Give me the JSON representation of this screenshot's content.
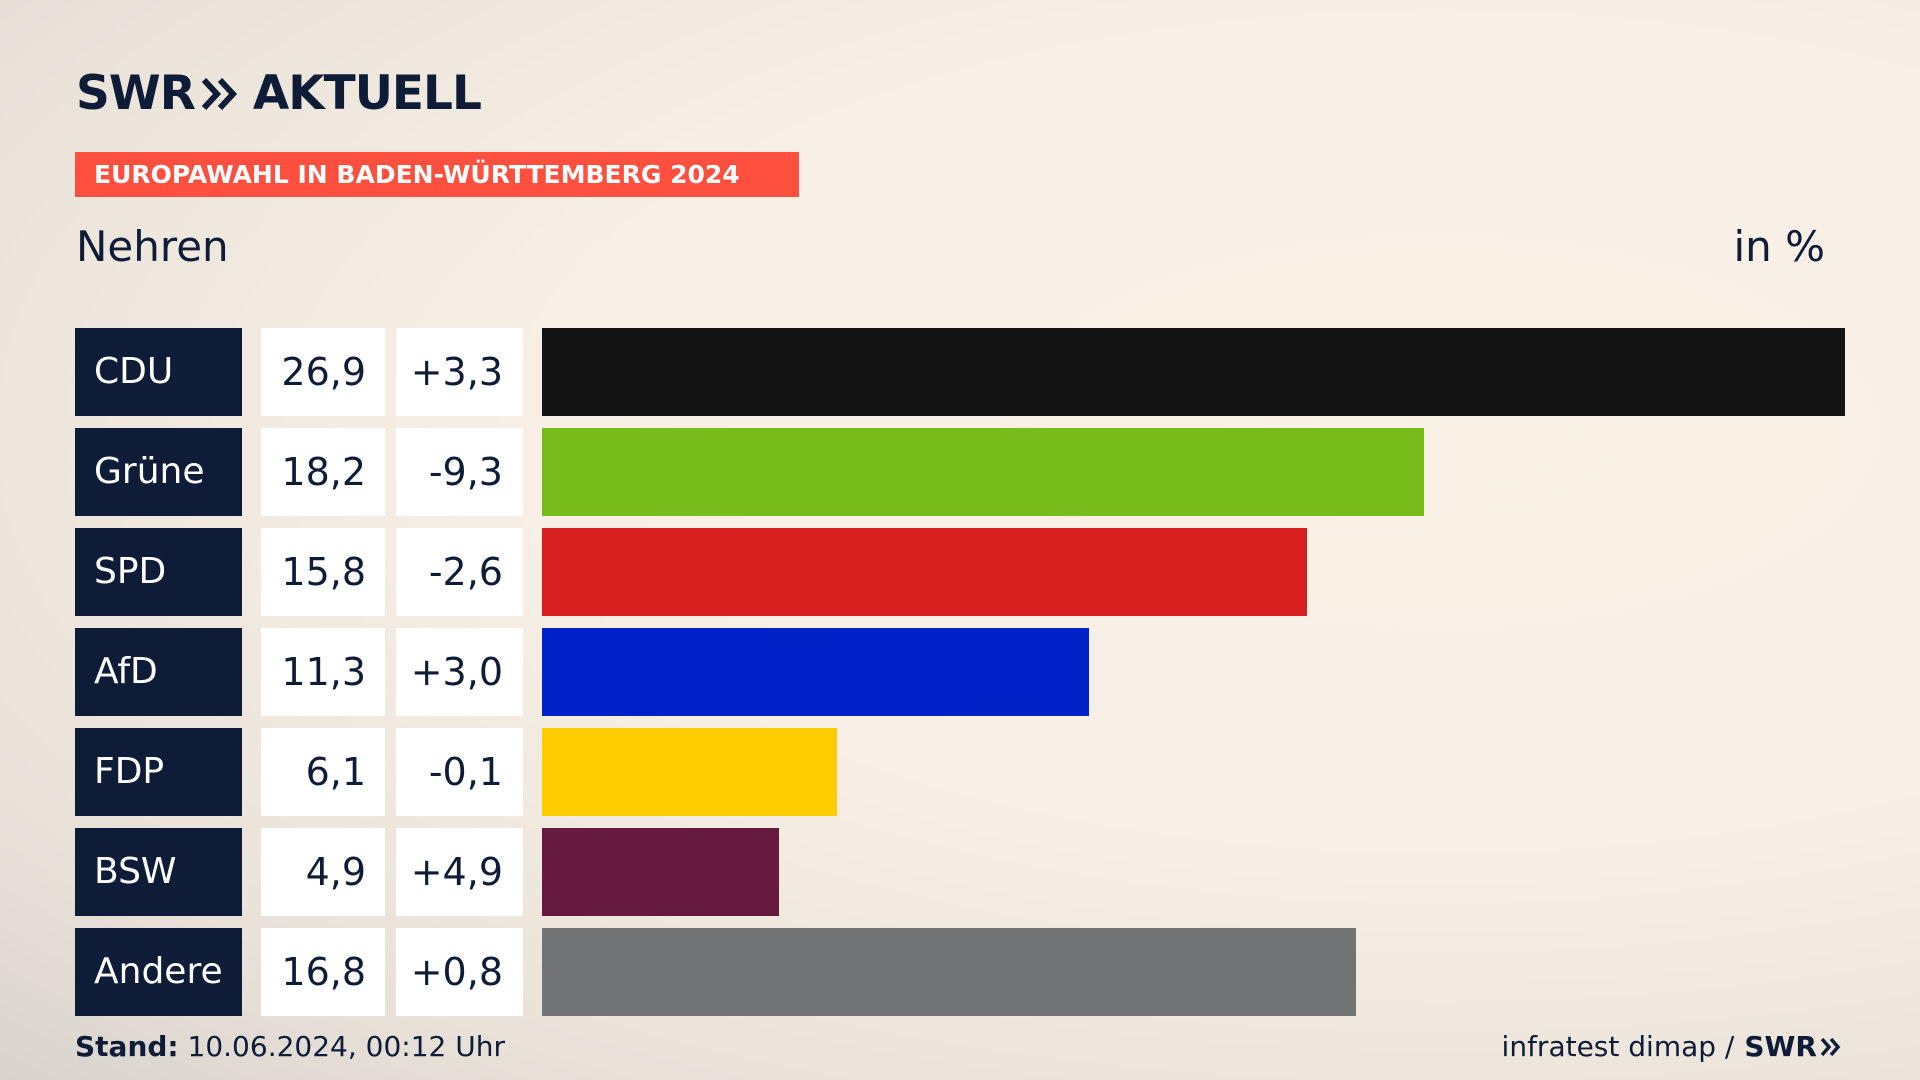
{
  "brand": {
    "logo_left": "SWR",
    "logo_right": "AKTUELL"
  },
  "banner": "EUROPAWAHL IN BADEN-WÜRTTEMBERG 2024",
  "region": "Nehren",
  "unit_label": "in %",
  "chart_data": {
    "type": "bar",
    "orientation": "horizontal",
    "title": "",
    "categories": [
      "CDU",
      "Grüne",
      "SPD",
      "AfD",
      "FDP",
      "BSW",
      "Andere"
    ],
    "values": [
      26.9,
      18.2,
      15.8,
      11.3,
      6.1,
      4.9,
      16.8
    ],
    "value_labels": [
      "26,9",
      "18,2",
      "15,8",
      "11,3",
      "6,1",
      "4,9",
      "16,8"
    ],
    "change_labels": [
      "+3,3",
      "-9,3",
      "-2,6",
      "+3,0",
      "-0,1",
      "+4,9",
      "+0,8"
    ],
    "colors": [
      "#141414",
      "#78bc1b",
      "#d71f1d",
      "#0021c8",
      "#ffcc00",
      "#661a3f",
      "#717375"
    ],
    "xlim": [
      0,
      26.9
    ],
    "grid": false,
    "legend": "none"
  },
  "footer": {
    "stand_label": "Stand:",
    "stand_value": "10.06.2024, 00:12 Uhr",
    "source": "infratest dimap /",
    "source_brand": "SWR"
  }
}
